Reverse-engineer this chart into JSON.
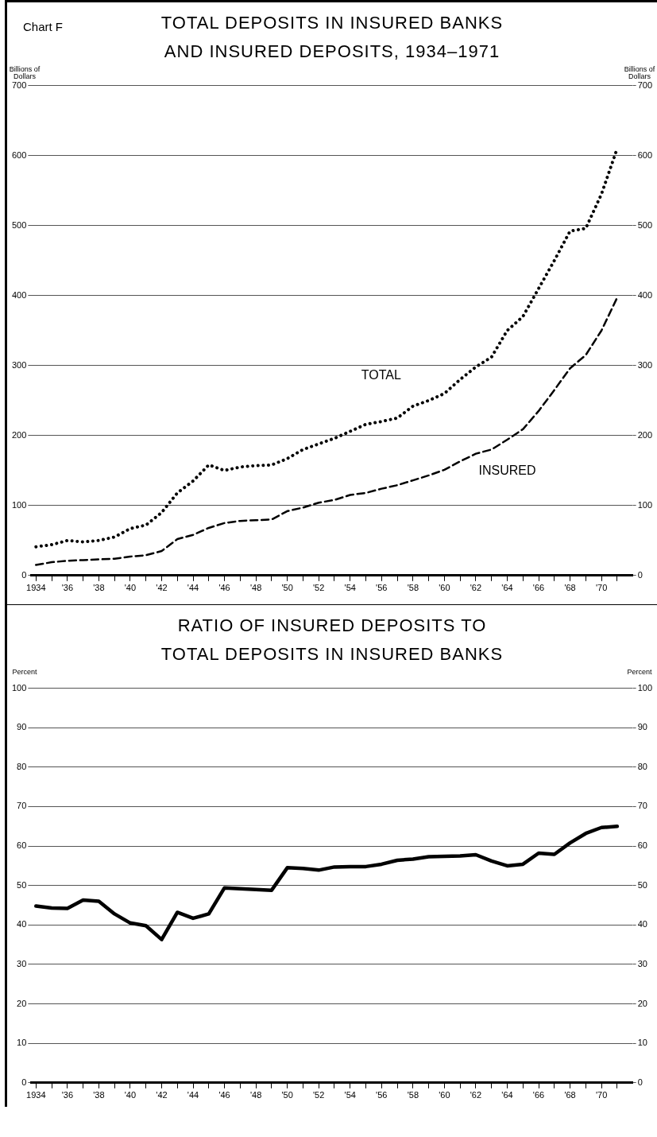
{
  "chart_data": [
    {
      "type": "line",
      "title": "TOTAL DEPOSITS IN INSURED BANKS AND INSURED DEPOSITS, 1934–1971",
      "annotations": [
        "Chart F"
      ],
      "ylabel": "Billions of Dollars",
      "y2label": "Billions of Dollars",
      "x": [
        1934,
        1935,
        1936,
        1937,
        1938,
        1939,
        1940,
        1941,
        1942,
        1943,
        1944,
        1945,
        1946,
        1947,
        1948,
        1949,
        1950,
        1951,
        1952,
        1953,
        1954,
        1955,
        1956,
        1957,
        1958,
        1959,
        1960,
        1961,
        1962,
        1963,
        1964,
        1965,
        1966,
        1967,
        1968,
        1969,
        1970,
        1971
      ],
      "series": [
        {
          "name": "TOTAL",
          "color": "#000000",
          "line_style": "dotted",
          "values": [
            41,
            44,
            50,
            48,
            50,
            55,
            67,
            72,
            90,
            118,
            135,
            158,
            150,
            155,
            157,
            158,
            167,
            180,
            188,
            196,
            206,
            216,
            220,
            225,
            242,
            250,
            260,
            280,
            298,
            312,
            350,
            370,
            410,
            450,
            492,
            496,
            545,
            610
          ]
        },
        {
          "name": "INSURED",
          "color": "#000000",
          "line_style": "dashed",
          "values": [
            15,
            19,
            21,
            22,
            23,
            24,
            27,
            29,
            35,
            52,
            58,
            68,
            75,
            78,
            79,
            80,
            92,
            97,
            104,
            108,
            115,
            118,
            124,
            129,
            136,
            143,
            151,
            163,
            174,
            180,
            194,
            209,
            235,
            265,
            296,
            315,
            350,
            397
          ]
        }
      ],
      "xlim": [
        1933.7,
        1972
      ],
      "xticks": [
        {
          "value": 1934,
          "label": "1934"
        },
        {
          "value": 1935,
          "label": null
        },
        {
          "value": 1936,
          "label": "'36"
        },
        {
          "value": 1937,
          "label": null
        },
        {
          "value": 1938,
          "label": "'38"
        },
        {
          "value": 1939,
          "label": null
        },
        {
          "value": 1940,
          "label": "'40"
        },
        {
          "value": 1941,
          "label": null
        },
        {
          "value": 1942,
          "label": "'42"
        },
        {
          "value": 1943,
          "label": null
        },
        {
          "value": 1944,
          "label": "'44"
        },
        {
          "value": 1945,
          "label": null
        },
        {
          "value": 1946,
          "label": "'46"
        },
        {
          "value": 1947,
          "label": null
        },
        {
          "value": 1948,
          "label": "'48"
        },
        {
          "value": 1949,
          "label": null
        },
        {
          "value": 1950,
          "label": "'50"
        },
        {
          "value": 1951,
          "label": null
        },
        {
          "value": 1952,
          "label": "'52"
        },
        {
          "value": 1953,
          "label": null
        },
        {
          "value": 1954,
          "label": "'54"
        },
        {
          "value": 1955,
          "label": null
        },
        {
          "value": 1956,
          "label": "'56"
        },
        {
          "value": 1957,
          "label": null
        },
        {
          "value": 1958,
          "label": "'58"
        },
        {
          "value": 1959,
          "label": null
        },
        {
          "value": 1960,
          "label": "'60"
        },
        {
          "value": 1961,
          "label": null
        },
        {
          "value": 1962,
          "label": "'62"
        },
        {
          "value": 1963,
          "label": null
        },
        {
          "value": 1964,
          "label": "'64"
        },
        {
          "value": 1965,
          "label": null
        },
        {
          "value": 1966,
          "label": "'66"
        },
        {
          "value": 1967,
          "label": null
        },
        {
          "value": 1968,
          "label": "'68"
        },
        {
          "value": 1969,
          "label": null
        },
        {
          "value": 1970,
          "label": "'70"
        },
        {
          "value": 1971,
          "label": null
        }
      ],
      "ylim": [
        0,
        700
      ],
      "yticks": [
        0,
        100,
        200,
        300,
        400,
        500,
        600,
        700
      ],
      "y2lim": [
        0,
        700
      ],
      "y2ticks": [
        0,
        100,
        200,
        300,
        400,
        500,
        600,
        700
      ],
      "grid": "y",
      "legend": false,
      "marker": "none"
    },
    {
      "type": "line",
      "title": "RATIO OF INSURED DEPOSITS TO TOTAL DEPOSITS IN INSURED BANKS",
      "ylabel": "Percent",
      "y2label": "Percent",
      "x": [
        1934,
        1935,
        1936,
        1937,
        1938,
        1939,
        1940,
        1941,
        1942,
        1943,
        1944,
        1945,
        1946,
        1947,
        1948,
        1949,
        1950,
        1951,
        1952,
        1953,
        1954,
        1955,
        1956,
        1957,
        1958,
        1959,
        1960,
        1961,
        1962,
        1963,
        1964,
        1965,
        1966,
        1967,
        1968,
        1969,
        1970,
        1971
      ],
      "series": [
        {
          "color": "#000000",
          "line_style": "solid",
          "values": [
            44.8,
            44.3,
            44.2,
            46.3,
            46.0,
            42.8,
            40.5,
            39.8,
            36.3,
            43.2,
            41.7,
            42.8,
            49.4,
            49.2,
            49.0,
            48.8,
            54.5,
            54.3,
            53.9,
            54.7,
            54.8,
            54.8,
            55.4,
            56.4,
            56.7,
            57.3,
            57.4,
            57.5,
            57.8,
            56.2,
            55.0,
            55.4,
            58.2,
            57.9,
            60.8,
            63.2,
            64.7,
            65.0
          ]
        }
      ],
      "xlim": [
        1933.7,
        1972
      ],
      "xticks": [
        {
          "value": 1934,
          "label": "1934"
        },
        {
          "value": 1935,
          "label": null
        },
        {
          "value": 1936,
          "label": "'36"
        },
        {
          "value": 1937,
          "label": null
        },
        {
          "value": 1938,
          "label": "'38"
        },
        {
          "value": 1939,
          "label": null
        },
        {
          "value": 1940,
          "label": "'40"
        },
        {
          "value": 1941,
          "label": null
        },
        {
          "value": 1942,
          "label": "'42"
        },
        {
          "value": 1943,
          "label": null
        },
        {
          "value": 1944,
          "label": "'44"
        },
        {
          "value": 1945,
          "label": null
        },
        {
          "value": 1946,
          "label": "'46"
        },
        {
          "value": 1947,
          "label": null
        },
        {
          "value": 1948,
          "label": "'48"
        },
        {
          "value": 1949,
          "label": null
        },
        {
          "value": 1950,
          "label": "'50"
        },
        {
          "value": 1951,
          "label": null
        },
        {
          "value": 1952,
          "label": "'52"
        },
        {
          "value": 1953,
          "label": null
        },
        {
          "value": 1954,
          "label": "'54"
        },
        {
          "value": 1955,
          "label": null
        },
        {
          "value": 1956,
          "label": "'56"
        },
        {
          "value": 1957,
          "label": null
        },
        {
          "value": 1958,
          "label": "'58"
        },
        {
          "value": 1959,
          "label": null
        },
        {
          "value": 1960,
          "label": "'60"
        },
        {
          "value": 1961,
          "label": null
        },
        {
          "value": 1962,
          "label": "'62"
        },
        {
          "value": 1963,
          "label": null
        },
        {
          "value": 1964,
          "label": "'64"
        },
        {
          "value": 1965,
          "label": null
        },
        {
          "value": 1966,
          "label": "'66"
        },
        {
          "value": 1967,
          "label": null
        },
        {
          "value": 1968,
          "label": "'68"
        },
        {
          "value": 1969,
          "label": null
        },
        {
          "value": 1970,
          "label": "'70"
        },
        {
          "value": 1971,
          "label": null
        }
      ],
      "ylim": [
        0,
        100
      ],
      "yticks": [
        0,
        10,
        20,
        30,
        40,
        50,
        60,
        70,
        80,
        90,
        100
      ],
      "y2lim": [
        0,
        100
      ],
      "y2ticks": [
        0,
        10,
        20,
        30,
        40,
        50,
        60,
        70,
        80,
        90,
        100
      ],
      "grid": "y",
      "legend": false,
      "marker": "none"
    }
  ]
}
